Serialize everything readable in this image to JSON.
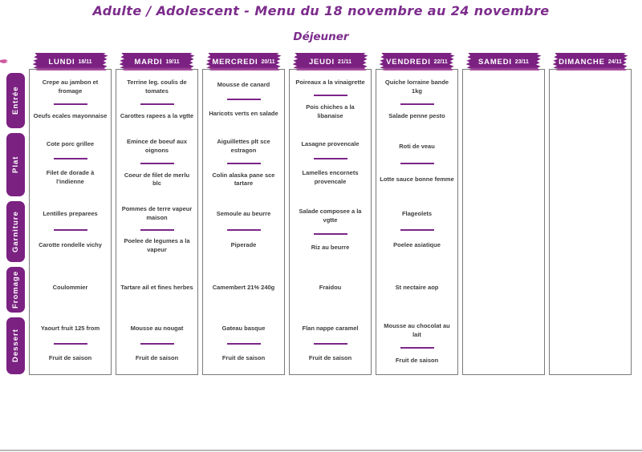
{
  "header": {
    "title": "Adulte / Adolescent - Menu du 18 novembre au 24 novembre",
    "subtitle": "Déjeuner"
  },
  "colors": {
    "accent_purple": "#7b2182",
    "title_purple": "#7c2c8c",
    "separator_purple": "#7c2588",
    "item_text": "#3d3d3d",
    "column_border": "#7a7a7a",
    "smudge_pink": "#cd5aa0",
    "bottom_edge_gray": "#b9b9b9"
  },
  "categories": [
    {
      "id": "entree",
      "label": "Entrée"
    },
    {
      "id": "plat",
      "label": "Plat"
    },
    {
      "id": "garniture",
      "label": "Garniture"
    },
    {
      "id": "fromage",
      "label": "Fromage"
    },
    {
      "id": "dessert",
      "label": "Dessert"
    }
  ],
  "days": [
    {
      "name": "LUNDI",
      "date": "18/11",
      "sections": {
        "entree": [
          "Crepe au jambon et fromage",
          "Oeufs ecales mayonnaise"
        ],
        "plat": [
          "Cote porc grillee",
          "Filet de dorade à l'indienne"
        ],
        "garniture": [
          "Lentilles preparees",
          "Carotte rondelle vichy"
        ],
        "fromage": [
          "Coulommier"
        ],
        "dessert": [
          "Yaourt fruit 125 from",
          "Fruit de saison"
        ]
      }
    },
    {
      "name": "MARDI",
      "date": "19/11",
      "sections": {
        "entree": [
          "Terrine leg. coulis de tomates",
          "Carottes rapees a la vgtte"
        ],
        "plat": [
          "Emince de boeuf aux oignons",
          "Coeur de filet de merlu blc"
        ],
        "garniture": [
          "Pommes de terre vapeur maison",
          "Poelee de legumes a la vapeur"
        ],
        "fromage": [
          "Tartare ail et fines herbes"
        ],
        "dessert": [
          "Mousse au nougat",
          "Fruit de saison"
        ]
      }
    },
    {
      "name": "MERCREDI",
      "date": "20/11",
      "sections": {
        "entree": [
          "Mousse de canard",
          "Haricots verts en salade"
        ],
        "plat": [
          "Aiguillettes plt sce estragon",
          "Colin alaska pane sce tartare"
        ],
        "garniture": [
          "Semoule au beurre",
          "Piperade"
        ],
        "fromage": [
          "Camembert 21% 240g"
        ],
        "dessert": [
          "Gateau basque",
          "Fruit de saison"
        ]
      }
    },
    {
      "name": "JEUDI",
      "date": "21/11",
      "sections": {
        "entree": [
          "Poireaux a la vinaigrette",
          "Pois chiches a la libanaise"
        ],
        "plat": [
          "Lasagne provencale",
          "Lamelles encornets provencale"
        ],
        "garniture": [
          "Salade composee a la vgtte",
          "Riz au beurre"
        ],
        "fromage": [
          "Fraidou"
        ],
        "dessert": [
          "Flan nappe caramel",
          "Fruit de saison"
        ]
      }
    },
    {
      "name": "VENDREDI",
      "date": "22/11",
      "sections": {
        "entree": [
          "Quiche lorraine bande 1kg",
          "Salade penne pesto"
        ],
        "plat": [
          "Roti de veau",
          "Lotte sauce bonne femme"
        ],
        "garniture": [
          "Flageolets",
          "Poelee asiatique"
        ],
        "fromage": [
          "St nectaire aop"
        ],
        "dessert": [
          "Mousse au chocolat au lait",
          "Fruit de saison"
        ]
      }
    },
    {
      "name": "SAMEDI",
      "date": "23/11",
      "sections": {
        "entree": [],
        "plat": [],
        "garniture": [],
        "fromage": [],
        "dessert": []
      }
    },
    {
      "name": "DIMANCHE",
      "date": "24/11",
      "sections": {
        "entree": [],
        "plat": [],
        "garniture": [],
        "fromage": [],
        "dessert": []
      }
    }
  ]
}
